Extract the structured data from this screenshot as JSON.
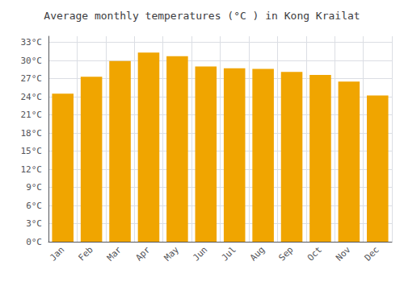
{
  "chart_data": {
    "type": "bar",
    "title": "Average monthly temperatures (°C ) in Kong Krailat",
    "categories": [
      "Jan",
      "Feb",
      "Mar",
      "Apr",
      "May",
      "Jun",
      "Jul",
      "Aug",
      "Sep",
      "Oct",
      "Nov",
      "Dec"
    ],
    "values": [
      24.5,
      27.3,
      29.9,
      31.3,
      30.7,
      29.0,
      28.7,
      28.6,
      28.1,
      27.6,
      26.5,
      24.2
    ],
    "color": "#F0A500",
    "ylim": [
      0,
      34
    ],
    "yticks": [
      {
        "value": 0,
        "label": "0°C"
      },
      {
        "value": 3,
        "label": "3°C"
      },
      {
        "value": 6,
        "label": "6°C"
      },
      {
        "value": 9,
        "label": "9°C"
      },
      {
        "value": 12,
        "label": "12°C"
      },
      {
        "value": 15,
        "label": "15°C"
      },
      {
        "value": 18,
        "label": "18°C"
      },
      {
        "value": 21,
        "label": "21°C"
      },
      {
        "value": 24,
        "label": "24°C"
      },
      {
        "value": 27,
        "label": "27°C"
      },
      {
        "value": 30,
        "label": "30°C"
      },
      {
        "value": 33,
        "label": "33°C"
      }
    ],
    "grid": true
  }
}
